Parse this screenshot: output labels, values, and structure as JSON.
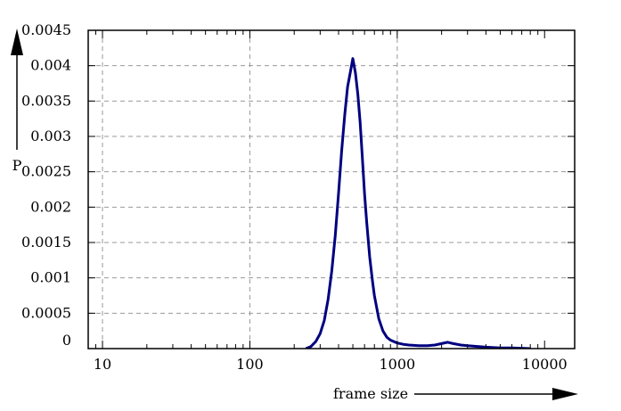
{
  "chart_data": {
    "type": "line",
    "title": "",
    "xlabel": "frame size",
    "ylabel": "P",
    "x_scale": "log",
    "xlim": [
      8,
      16000
    ],
    "ylim": [
      0,
      0.0045
    ],
    "grid": true,
    "legend": "none",
    "x_ticks": [
      {
        "value": 10,
        "label": "10"
      },
      {
        "value": 100,
        "label": "100"
      },
      {
        "value": 1000,
        "label": "1000"
      },
      {
        "value": 10000,
        "label": "10000"
      }
    ],
    "y_ticks": [
      {
        "value": 0,
        "label": "0"
      },
      {
        "value": 0.0005,
        "label": "0.0005"
      },
      {
        "value": 0.001,
        "label": "0.001"
      },
      {
        "value": 0.0015,
        "label": "0.0015"
      },
      {
        "value": 0.002,
        "label": "0.002"
      },
      {
        "value": 0.0025,
        "label": "0.0025"
      },
      {
        "value": 0.003,
        "label": "0.003"
      },
      {
        "value": 0.0035,
        "label": "0.0035"
      },
      {
        "value": 0.004,
        "label": "0.004"
      },
      {
        "value": 0.0045,
        "label": "0.0045"
      }
    ],
    "series": [
      {
        "color": "#000080",
        "x": [
          240,
          260,
          280,
          300,
          320,
          340,
          360,
          380,
          400,
          420,
          440,
          460,
          480,
          500,
          520,
          540,
          560,
          580,
          600,
          620,
          650,
          680,
          700,
          750,
          800,
          850,
          900,
          1000,
          1100,
          1200,
          1400,
          1600,
          1800,
          2000,
          2200,
          2400,
          2700,
          3000,
          3500,
          4000,
          5000,
          6000,
          7000,
          8000
        ],
        "y": [
          0.0,
          3e-05,
          0.0001,
          0.00021,
          0.0004,
          0.0007,
          0.0011,
          0.0016,
          0.0022,
          0.0028,
          0.0033,
          0.0037,
          0.0039,
          0.0041,
          0.0039,
          0.0036,
          0.0032,
          0.0027,
          0.0022,
          0.0018,
          0.0013,
          0.00095,
          0.00075,
          0.00042,
          0.00025,
          0.00016,
          0.00012,
          8e-05,
          6e-05,
          5e-05,
          4e-05,
          4e-05,
          5e-05,
          7e-05,
          9e-05,
          7e-05,
          5e-05,
          4e-05,
          3e-05,
          2e-05,
          1e-05,
          1e-05,
          5e-06,
          0.0
        ]
      }
    ]
  }
}
